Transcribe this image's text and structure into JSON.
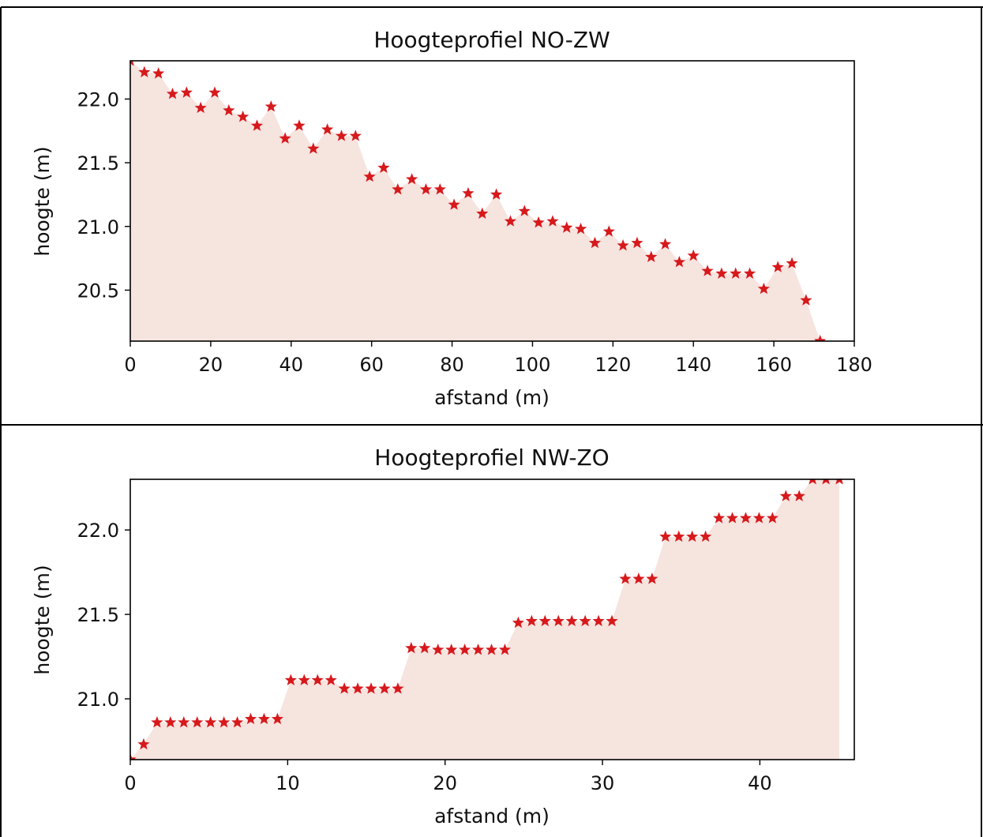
{
  "chart_data": [
    {
      "type": "area",
      "title": "Hoogteprofiel NO-ZW",
      "xlabel": "afstand (m)",
      "ylabel": "hoogte (m)",
      "xlim": [
        0,
        180
      ],
      "ylim": [
        20.1,
        22.3
      ],
      "xticks": [
        "0",
        "20",
        "40",
        "60",
        "80",
        "100",
        "120",
        "140",
        "160",
        "180"
      ],
      "yticks": [
        "20.5",
        "21.0",
        "21.5",
        "22.0"
      ],
      "fill_color": "#f6e4df",
      "marker_color": "#d7191c",
      "marker": "star",
      "series": [
        {
          "x": [
            0,
            3.5,
            7,
            10.5,
            14,
            17.5,
            21,
            24.5,
            28,
            31.5,
            35,
            38.5,
            42,
            45.5,
            49,
            52.5,
            56,
            59.5,
            63,
            66.5,
            70,
            73.5,
            77,
            80.5,
            84,
            87.5,
            91,
            94.5,
            98,
            101.5,
            105,
            108.5,
            112,
            115.5,
            119,
            122.5,
            126,
            129.5,
            133,
            136.5,
            140,
            143.5,
            147,
            150.5,
            154,
            157.5,
            161,
            164.5,
            168,
            171.5
          ],
          "y": [
            22.3,
            22.21,
            22.2,
            22.04,
            22.05,
            21.93,
            22.05,
            21.91,
            21.86,
            21.79,
            21.94,
            21.69,
            21.79,
            21.61,
            21.76,
            21.71,
            21.71,
            21.39,
            21.46,
            21.29,
            21.37,
            21.29,
            21.29,
            21.17,
            21.26,
            21.1,
            21.25,
            21.04,
            21.12,
            21.03,
            21.04,
            20.99,
            20.98,
            20.87,
            20.96,
            20.85,
            20.87,
            20.76,
            20.86,
            20.72,
            20.77,
            20.65,
            20.63,
            20.63,
            20.63,
            20.51,
            20.68,
            20.71,
            20.42,
            20.1
          ]
        }
      ]
    },
    {
      "type": "area",
      "title": "Hoogteprofiel NW-ZO",
      "xlabel": "afstand (m)",
      "ylabel": "hoogte (m)",
      "xlim": [
        0,
        46
      ],
      "ylim": [
        20.64,
        22.3
      ],
      "xticks": [
        "0",
        "10",
        "20",
        "30",
        "40"
      ],
      "yticks": [
        "21.0",
        "21.5",
        "22.0"
      ],
      "fill_color": "#f6e4df",
      "marker_color": "#d7191c",
      "marker": "star",
      "series": [
        {
          "x": [
            0,
            0.85,
            1.7,
            2.55,
            3.4,
            4.25,
            5.1,
            5.95,
            6.8,
            7.65,
            8.5,
            9.35,
            10.2,
            11.05,
            11.9,
            12.75,
            13.6,
            14.45,
            15.3,
            16.15,
            17.0,
            17.85,
            18.7,
            19.55,
            20.4,
            21.25,
            22.1,
            22.95,
            23.8,
            24.65,
            25.5,
            26.35,
            27.2,
            28.05,
            28.9,
            29.75,
            30.6,
            31.45,
            32.3,
            33.15,
            34.0,
            34.85,
            35.7,
            36.55,
            37.4,
            38.25,
            39.1,
            39.95,
            40.8,
            41.65,
            42.5,
            43.35,
            44.2,
            45.05
          ],
          "y": [
            20.64,
            20.73,
            20.86,
            20.86,
            20.86,
            20.86,
            20.86,
            20.86,
            20.86,
            20.88,
            20.88,
            20.88,
            21.11,
            21.11,
            21.11,
            21.11,
            21.06,
            21.06,
            21.06,
            21.06,
            21.06,
            21.3,
            21.3,
            21.29,
            21.29,
            21.29,
            21.29,
            21.29,
            21.29,
            21.45,
            21.46,
            21.46,
            21.46,
            21.46,
            21.46,
            21.46,
            21.46,
            21.71,
            21.71,
            21.71,
            21.96,
            21.96,
            21.96,
            21.96,
            22.07,
            22.07,
            22.07,
            22.07,
            22.07,
            22.2,
            22.2,
            22.3,
            22.3,
            22.3
          ]
        }
      ]
    }
  ]
}
